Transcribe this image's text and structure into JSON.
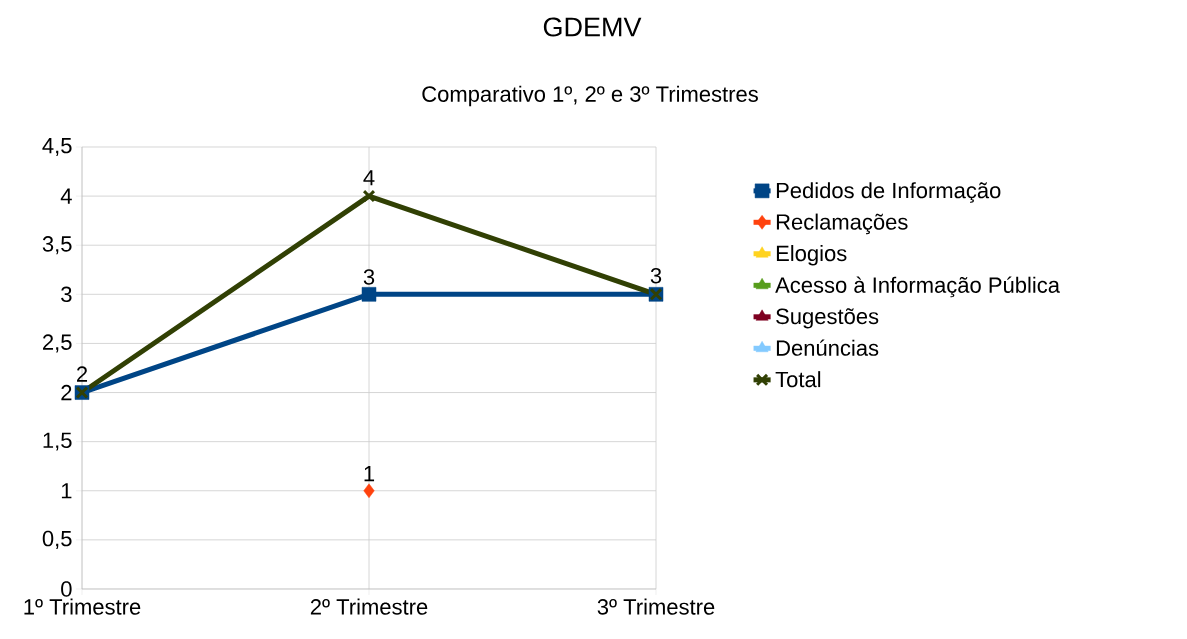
{
  "chart_data": {
    "type": "line",
    "title": "GDEMV",
    "subtitle": "Comparativo 1º, 2º e 3º Trimestres",
    "categories": [
      "1º Trimestre",
      "2º Trimestre",
      "3º Trimestre"
    ],
    "series": [
      {
        "name": "Pedidos de Informação",
        "color": "#004586",
        "marker": "square",
        "values": [
          2,
          3,
          3
        ],
        "value_labels": [
          null,
          "3",
          null
        ]
      },
      {
        "name": "Reclamações",
        "color": "#ff420e",
        "marker": "diamond",
        "values": [
          null,
          1,
          null
        ],
        "value_labels": [
          null,
          "1",
          null
        ]
      },
      {
        "name": "Elogios",
        "color": "#ffd320",
        "marker": "triangle",
        "values": [
          null,
          null,
          null
        ]
      },
      {
        "name": "Acesso à Informação Pública",
        "color": "#579d1c",
        "marker": "triangle",
        "values": [
          null,
          null,
          null
        ]
      },
      {
        "name": "Sugestões",
        "color": "#7e0021",
        "marker": "triangle",
        "values": [
          null,
          null,
          null
        ]
      },
      {
        "name": "Denúncias",
        "color": "#83caff",
        "marker": "triangle",
        "values": [
          null,
          null,
          null
        ]
      },
      {
        "name": "Total",
        "color": "#314004",
        "marker": "cross",
        "values": [
          2,
          4,
          3
        ],
        "value_labels": [
          "2",
          "4",
          "3"
        ]
      }
    ],
    "ylim": [
      0,
      4.5
    ],
    "yticks": [
      0,
      {
        "value": 0.5,
        "label": "0,5"
      },
      1,
      {
        "value": 1.5,
        "label": "1,5"
      },
      2,
      {
        "value": 2.5,
        "label": "2,5"
      },
      3,
      {
        "value": 3.5,
        "label": "3,5"
      },
      4,
      {
        "value": 4.5,
        "label": "4,5"
      }
    ],
    "grid": true,
    "legend": "right"
  }
}
